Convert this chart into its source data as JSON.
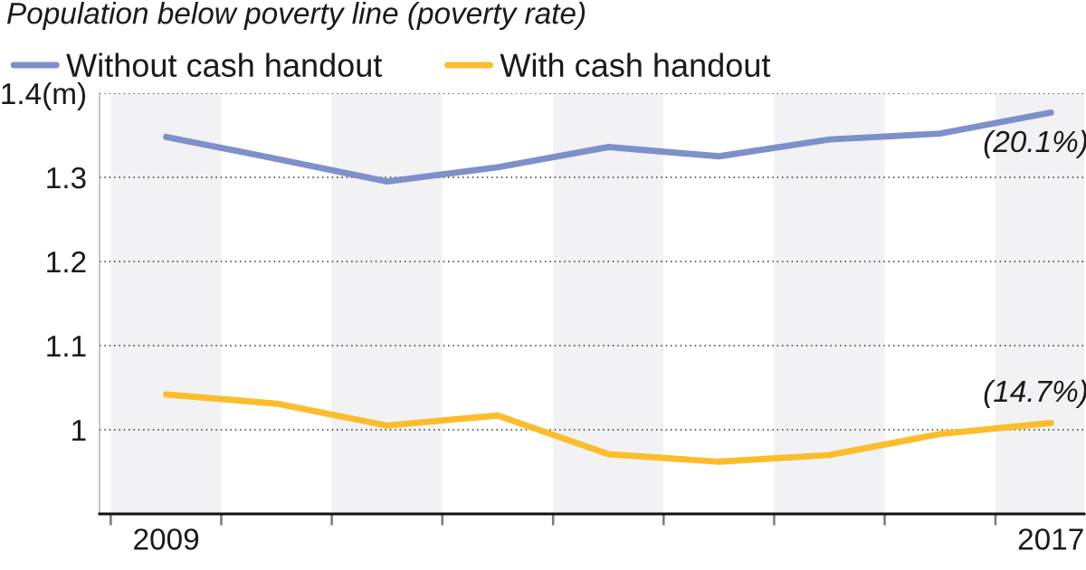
{
  "chart_data": {
    "type": "line",
    "title": "Population below poverty line (poverty rate)",
    "x": [
      "2009",
      "2010",
      "2011",
      "2012",
      "2013",
      "2014",
      "2015",
      "2016",
      "2017"
    ],
    "series": [
      {
        "name": "Without cash handout",
        "color": "#7f8fca",
        "values": [
          1.348,
          1.322,
          1.295,
          1.312,
          1.336,
          1.325,
          1.345,
          1.352,
          1.377
        ]
      },
      {
        "name": "With cash handout",
        "color": "#fbbd2b",
        "values": [
          1.042,
          1.031,
          1.005,
          1.017,
          0.971,
          0.962,
          0.97,
          0.995,
          1.008
        ]
      }
    ],
    "xlim": [
      "2008-05-26",
      "2017-04-21"
    ],
    "xticks": [
      {
        "value": "2008-07-02",
        "label": null
      },
      {
        "value": "2009",
        "label": "2009"
      },
      {
        "value": "2009-07-02",
        "label": null
      },
      {
        "value": "2010-07-02",
        "label": null
      },
      {
        "value": "2011-07-02",
        "label": null
      },
      {
        "value": "2012-07-02",
        "label": null
      },
      {
        "value": "2013-07-02",
        "label": null
      },
      {
        "value": "2014-07-02",
        "label": null
      },
      {
        "value": "2015-07-02",
        "label": null
      },
      {
        "value": "2016-07-02",
        "label": null
      },
      {
        "value": "2017",
        "label": "2017"
      }
    ],
    "ylim": [
      0.9,
      1.4
    ],
    "yticks": [
      1,
      1.1,
      1.2,
      1.3,
      {
        "value": 1.4,
        "label": "1.4(m)"
      }
    ],
    "grid": "y",
    "legend": "top left",
    "line_style": "solid",
    "bands": [
      {
        "axis": "x",
        "from": "2008-07-02",
        "to": "2009-07-02",
        "color": "#f2f2f4"
      },
      {
        "axis": "x",
        "from": "2010-07-02",
        "to": "2011-07-02",
        "color": "#f2f2f4"
      },
      {
        "axis": "x",
        "from": "2012-07-02",
        "to": "2013-07-02",
        "color": "#f2f2f4"
      },
      {
        "axis": "x",
        "from": "2014-07-02",
        "to": "2015-07-02",
        "color": "#f2f2f4"
      },
      {
        "axis": "x",
        "from": "2016-07-02",
        "to": "2017-04-21",
        "color": "#f2f2f4"
      }
    ],
    "annotations": [
      {
        "text": "(20.1%)",
        "x": "2017",
        "y": 1.377
      },
      {
        "text": "(14.7%)",
        "x": "2017",
        "y": 1.008
      }
    ]
  }
}
